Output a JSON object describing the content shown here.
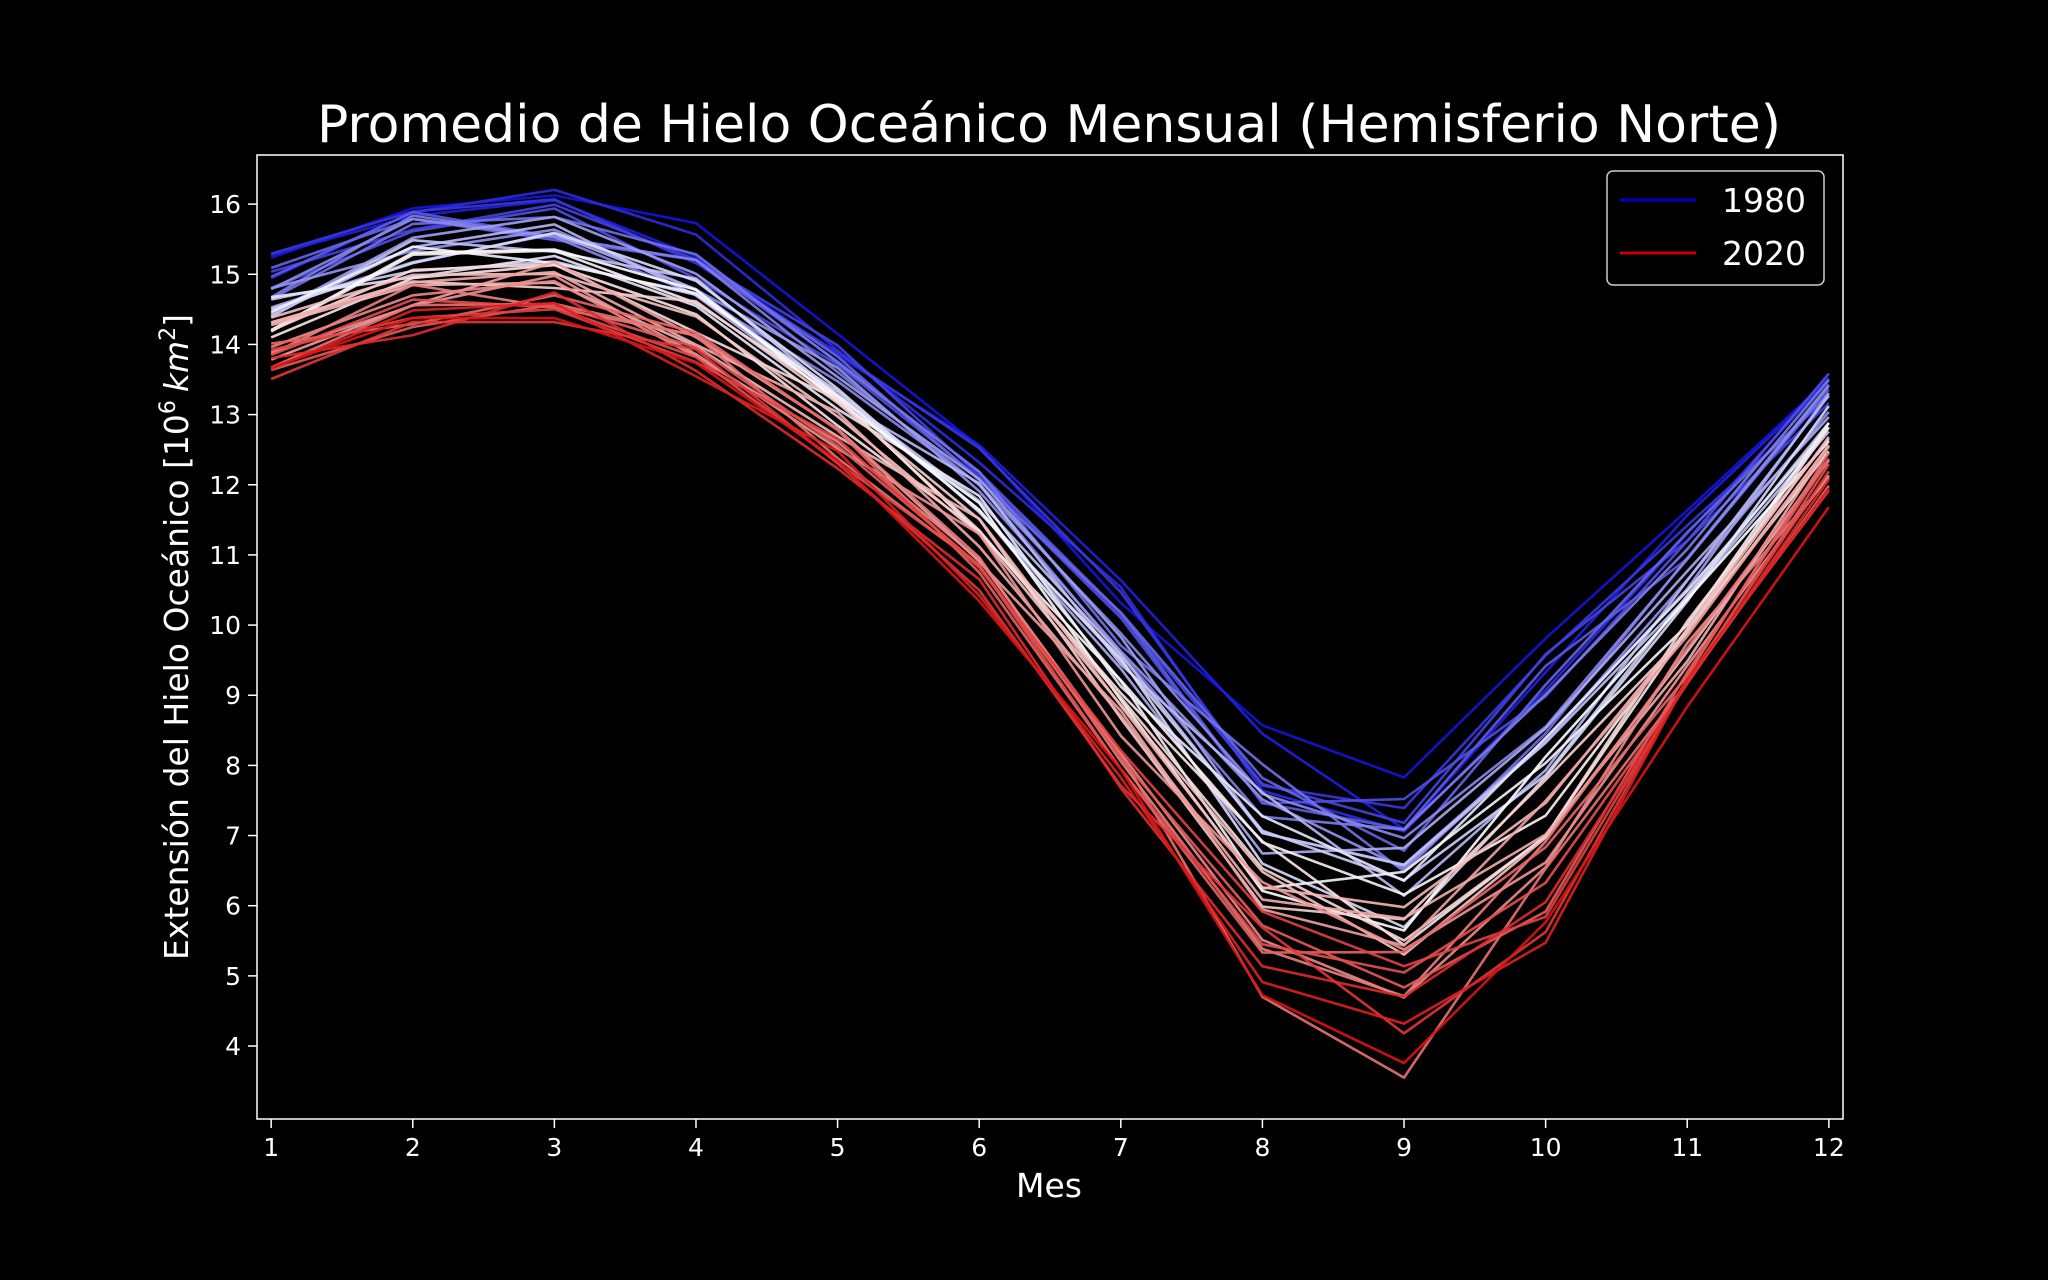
{
  "chart_data": {
    "type": "line",
    "title": "Promedio de Hielo Oceánico Mensual (Hemisferio Norte)",
    "xlabel": "Mes",
    "ylabel_main": "Extensión del Hielo Oceánico [10",
    "ylabel_sup": "6",
    "ylabel_unit": "km",
    "ylabel_unit_sup": "2",
    "ylabel_close": "]",
    "x": [
      1,
      2,
      3,
      4,
      5,
      6,
      7,
      8,
      9,
      10,
      11,
      12
    ],
    "x_ticks": [
      "1",
      "2",
      "3",
      "4",
      "5",
      "6",
      "7",
      "8",
      "9",
      "10",
      "11",
      "12"
    ],
    "y_ticks": [
      "4",
      "5",
      "6",
      "7",
      "8",
      "9",
      "10",
      "11",
      "12",
      "13",
      "14",
      "15",
      "16"
    ],
    "xlim": [
      0.9,
      12.1
    ],
    "ylim": [
      2.96,
      16.7
    ],
    "grid": false,
    "background": "#000000",
    "foreground": "#ffffff",
    "colormap": "bwr",
    "legend": {
      "placement": "top-right",
      "entries": [
        {
          "label": "1980",
          "color": "#0000c8"
        },
        {
          "label": "2020",
          "color": "#c80000"
        }
      ]
    },
    "years": [
      1980,
      2020
    ],
    "profile_first": [
      15.15,
      16.05,
      16.05,
      15.45,
      14.05,
      12.45,
      10.5,
      8.15,
      7.6,
      9.45,
      11.5,
      13.6
    ],
    "profile_last": [
      13.5,
      14.2,
      14.4,
      13.6,
      12.3,
      10.6,
      7.7,
      5.1,
      4.3,
      5.9,
      8.9,
      11.9
    ],
    "extremes_low": [
      13.05,
      13.95,
      14.3,
      13.4,
      11.9,
      10.4,
      7.3,
      4.7,
      3.55,
      5.3,
      8.6,
      11.45
    ]
  }
}
